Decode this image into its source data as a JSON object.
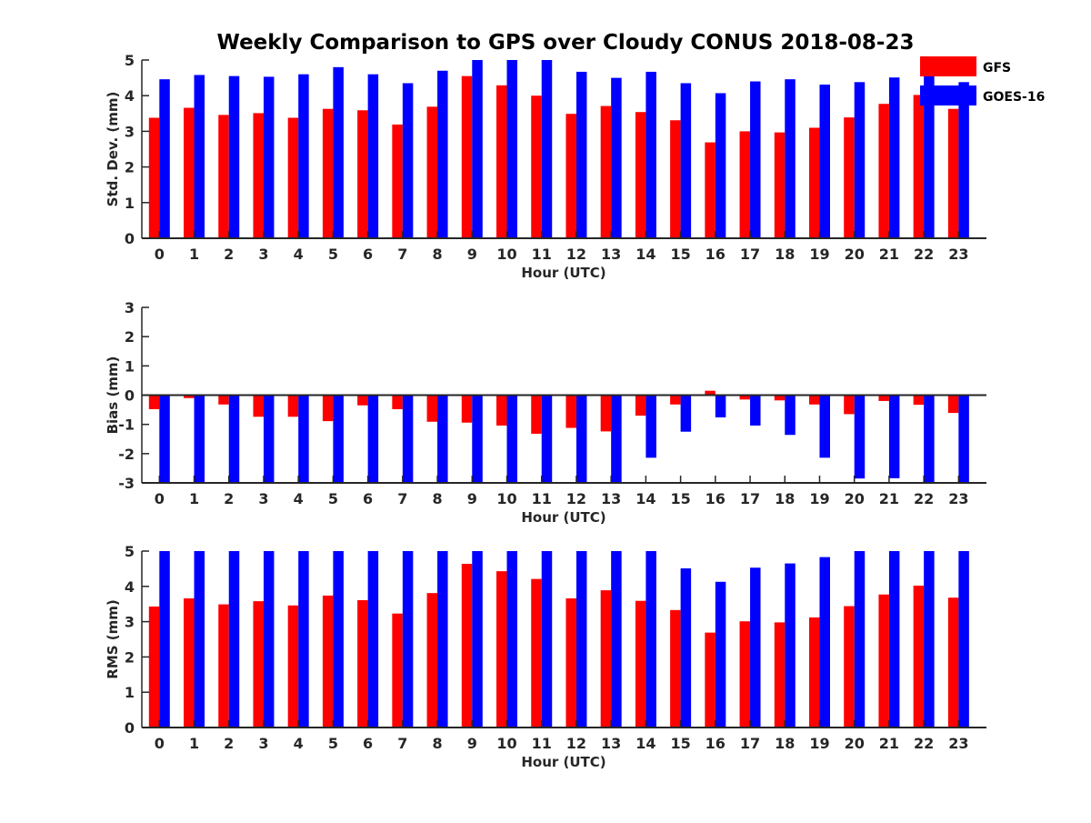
{
  "chart_data": {
    "type": "bar",
    "title": "Weekly Comparison to GPS over Cloudy CONUS 2018-08-23",
    "categories": [
      "0",
      "1",
      "2",
      "3",
      "4",
      "5",
      "6",
      "7",
      "8",
      "9",
      "10",
      "11",
      "12",
      "13",
      "14",
      "15",
      "16",
      "17",
      "18",
      "19",
      "20",
      "21",
      "22",
      "23"
    ],
    "legend": {
      "placement": "top-right",
      "entries": [
        {
          "name": "GFS",
          "color": "#ff0000"
        },
        {
          "name": "GOES-16",
          "color": "#0000ff"
        }
      ]
    },
    "panels": [
      {
        "xlabel": "Hour (UTC)",
        "ylabel": "Std. Dev. (mm)",
        "ylim": [
          0,
          5
        ],
        "yticks": [
          0,
          1,
          2,
          3,
          4,
          5
        ],
        "zero_line": false,
        "series": [
          {
            "name": "GFS",
            "color": "#ff0000",
            "values": [
              3.38,
              3.66,
              3.46,
              3.51,
              3.38,
              3.63,
              3.59,
              3.19,
              3.69,
              4.55,
              4.29,
              4.0,
              3.49,
              3.71,
              3.54,
              3.31,
              2.69,
              3.0,
              2.97,
              3.1,
              3.39,
              3.77,
              4.02,
              3.63
            ]
          },
          {
            "name": "GOES-16",
            "color": "#0000ff",
            "values": [
              4.46,
              4.58,
              4.55,
              4.53,
              4.6,
              4.8,
              4.6,
              4.35,
              4.7,
              5.0,
              5.0,
              5.0,
              4.67,
              4.5,
              4.67,
              4.35,
              4.07,
              4.4,
              4.46,
              4.31,
              4.38,
              4.51,
              4.65,
              4.38
            ]
          }
        ]
      },
      {
        "xlabel": "Hour (UTC)",
        "ylabel": "Bias (mm)",
        "ylim": [
          -3,
          3
        ],
        "yticks": [
          -3,
          -2,
          -1,
          0,
          1,
          2,
          3
        ],
        "zero_line": true,
        "series": [
          {
            "name": "GFS",
            "color": "#ff0000",
            "values": [
              -0.48,
              -0.1,
              -0.32,
              -0.74,
              -0.74,
              -0.89,
              -0.35,
              -0.48,
              -0.91,
              -0.94,
              -1.04,
              -1.32,
              -1.12,
              -1.24,
              -0.7,
              -0.32,
              0.15,
              -0.15,
              -0.18,
              -0.32,
              -0.65,
              -0.2,
              -0.33,
              -0.61
            ]
          },
          {
            "name": "GOES-16",
            "color": "#0000ff",
            "values": [
              -3.0,
              -3.0,
              -3.0,
              -3.0,
              -3.0,
              -3.0,
              -3.0,
              -3.0,
              -3.0,
              -3.0,
              -3.0,
              -3.0,
              -3.0,
              -3.0,
              -2.14,
              -1.25,
              -0.76,
              -1.04,
              -1.36,
              -2.14,
              -2.85,
              -2.84,
              -3.0,
              -3.0
            ]
          }
        ]
      },
      {
        "xlabel": "Hour (UTC)",
        "ylabel": "RMS (mm)",
        "ylim": [
          0,
          5
        ],
        "yticks": [
          0,
          1,
          2,
          3,
          4,
          5
        ],
        "zero_line": false,
        "series": [
          {
            "name": "GFS",
            "color": "#ff0000",
            "values": [
              3.43,
              3.66,
              3.49,
              3.58,
              3.46,
              3.74,
              3.61,
              3.23,
              3.81,
              4.64,
              4.43,
              4.21,
              3.66,
              3.89,
              3.59,
              3.33,
              2.69,
              3.01,
              2.98,
              3.12,
              3.44,
              3.77,
              4.02,
              3.68
            ]
          },
          {
            "name": "GOES-16",
            "color": "#0000ff",
            "values": [
              5.0,
              5.0,
              5.0,
              5.0,
              5.0,
              5.0,
              5.0,
              5.0,
              5.0,
              5.0,
              5.0,
              5.0,
              5.0,
              5.0,
              5.0,
              4.51,
              4.13,
              4.53,
              4.65,
              4.83,
              5.0,
              5.0,
              5.0,
              5.0
            ]
          }
        ]
      }
    ]
  }
}
